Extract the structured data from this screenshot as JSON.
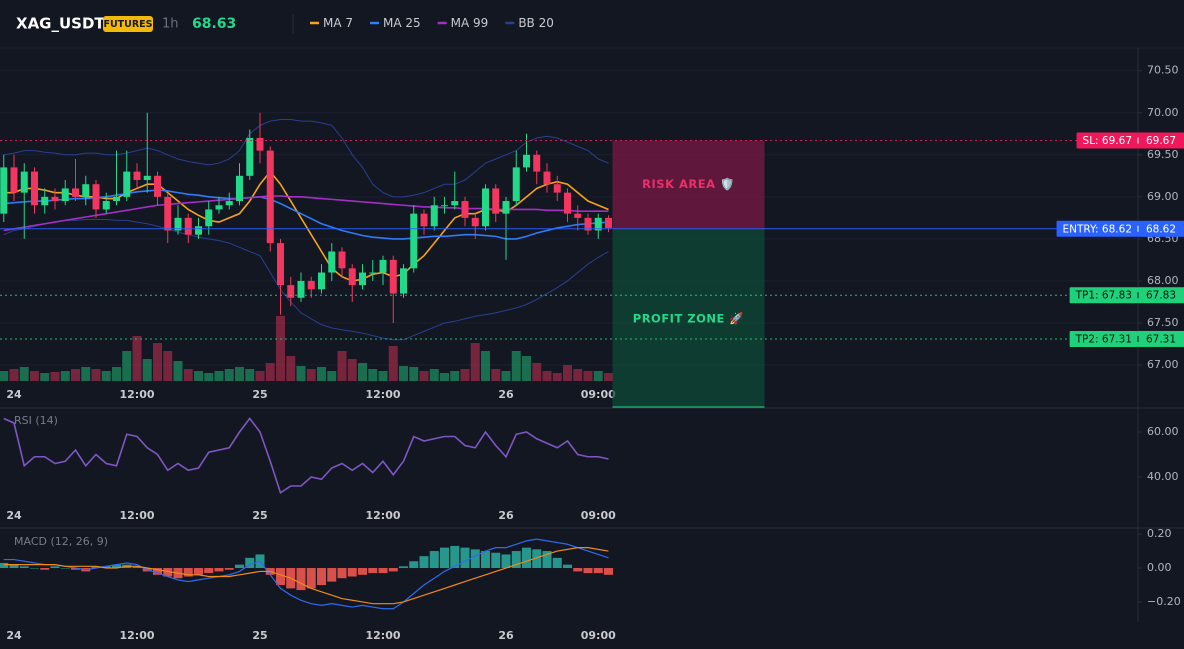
{
  "header": {
    "symbol": "XAG_USDT",
    "badge": "FUTURES",
    "interval": "1h",
    "price": 68.63
  },
  "chart_data": [
    {
      "type": "candlestick",
      "categories": [
        null,
        "24",
        null,
        null,
        null,
        null,
        null,
        null,
        null,
        null,
        null,
        null,
        null,
        "12:00",
        null,
        null,
        null,
        null,
        null,
        null,
        null,
        null,
        null,
        null,
        null,
        "25",
        null,
        null,
        null,
        null,
        null,
        null,
        null,
        null,
        null,
        null,
        null,
        "12:00",
        null,
        null,
        null,
        null,
        null,
        null,
        null,
        null,
        null,
        null,
        null,
        "26",
        null,
        null,
        null,
        null,
        null,
        null,
        null,
        null,
        "09:00",
        null
      ],
      "open": [
        68.8,
        69.35,
        69.05,
        69.3,
        68.9,
        69.0,
        68.95,
        69.1,
        69.0,
        69.15,
        68.85,
        68.95,
        69.0,
        69.3,
        69.2,
        69.25,
        69.0,
        68.6,
        68.75,
        68.55,
        68.65,
        68.85,
        68.9,
        68.95,
        69.25,
        69.7,
        69.55,
        68.45,
        67.95,
        67.8,
        68.0,
        67.9,
        68.1,
        68.35,
        68.15,
        67.95,
        68.1,
        68.1,
        68.25,
        67.85,
        68.15,
        68.8,
        68.65,
        68.9,
        68.9,
        68.95,
        68.75,
        68.65,
        69.1,
        68.8,
        68.95,
        69.35,
        69.5,
        69.3,
        69.15,
        69.05,
        68.8,
        68.75,
        68.6,
        68.75
      ],
      "high": [
        69.5,
        69.5,
        69.4,
        69.35,
        69.1,
        69.1,
        69.2,
        69.45,
        69.25,
        69.2,
        69.05,
        69.55,
        69.55,
        69.4,
        70.0,
        69.3,
        69.05,
        68.9,
        68.8,
        68.75,
        68.95,
        69.0,
        69.05,
        69.4,
        69.8,
        70.0,
        69.6,
        68.5,
        68.05,
        68.1,
        68.05,
        68.2,
        68.45,
        68.4,
        68.2,
        68.2,
        68.25,
        68.3,
        68.3,
        68.2,
        68.9,
        68.85,
        69.0,
        69.0,
        69.3,
        69.0,
        68.8,
        69.15,
        69.15,
        69.0,
        69.55,
        69.75,
        69.55,
        69.4,
        69.25,
        69.1,
        68.9,
        68.8,
        68.8,
        68.78
      ],
      "low": [
        68.7,
        68.95,
        68.5,
        68.8,
        68.8,
        68.85,
        68.9,
        68.95,
        68.9,
        68.75,
        68.8,
        68.9,
        68.95,
        69.1,
        69.05,
        68.9,
        68.45,
        68.55,
        68.45,
        68.5,
        68.55,
        68.8,
        68.85,
        68.9,
        69.2,
        69.4,
        68.35,
        67.6,
        67.7,
        67.75,
        67.8,
        67.85,
        68.0,
        68.05,
        67.75,
        67.9,
        68.0,
        67.95,
        67.5,
        67.8,
        68.1,
        68.55,
        68.6,
        68.8,
        68.85,
        68.65,
        68.5,
        68.6,
        68.7,
        68.25,
        68.9,
        69.3,
        69.15,
        69.05,
        68.95,
        68.7,
        68.6,
        68.55,
        68.5,
        68.58
      ],
      "close": [
        69.35,
        69.05,
        69.3,
        68.9,
        69.0,
        68.95,
        69.1,
        69.0,
        69.15,
        68.85,
        68.95,
        69.0,
        69.3,
        69.2,
        69.25,
        69.0,
        68.6,
        68.75,
        68.55,
        68.65,
        68.85,
        68.9,
        68.95,
        69.25,
        69.7,
        69.55,
        68.45,
        67.95,
        67.8,
        68.0,
        67.9,
        68.1,
        68.35,
        68.15,
        67.95,
        68.1,
        68.1,
        68.25,
        67.85,
        68.15,
        68.8,
        68.65,
        68.9,
        68.9,
        68.95,
        68.75,
        68.65,
        69.1,
        68.8,
        68.95,
        69.35,
        69.5,
        69.3,
        69.15,
        69.05,
        68.8,
        68.75,
        68.6,
        68.75,
        68.63
      ],
      "volume": [
        10,
        12,
        14,
        10,
        8,
        9,
        10,
        12,
        14,
        12,
        10,
        14,
        30,
        45,
        22,
        38,
        30,
        20,
        12,
        10,
        8,
        10,
        12,
        14,
        12,
        10,
        18,
        65,
        25,
        15,
        12,
        14,
        10,
        30,
        22,
        18,
        12,
        10,
        35,
        15,
        14,
        10,
        12,
        8,
        10,
        12,
        38,
        30,
        12,
        10,
        30,
        25,
        18,
        10,
        8,
        16,
        12,
        10,
        10,
        8
      ],
      "up_color": "#22d98a",
      "down_color": "#f2365f",
      "series": [
        {
          "name": "MA 7",
          "color": "#f7a21b",
          "values": [
            69.05,
            69.05,
            69.1,
            69.1,
            69.08,
            69.05,
            69.05,
            69.02,
            69.0,
            69.0,
            68.98,
            68.98,
            69.05,
            69.1,
            69.15,
            69.15,
            69.05,
            68.95,
            68.85,
            68.78,
            68.72,
            68.7,
            68.75,
            68.8,
            68.95,
            69.15,
            69.3,
            69.15,
            68.95,
            68.75,
            68.55,
            68.35,
            68.15,
            68.05,
            68.0,
            68.02,
            68.08,
            68.1,
            68.05,
            68.08,
            68.2,
            68.3,
            68.45,
            68.6,
            68.75,
            68.8,
            68.8,
            68.85,
            68.85,
            68.82,
            68.9,
            69.0,
            69.1,
            69.15,
            69.18,
            69.15,
            69.05,
            68.95,
            68.9,
            68.85
          ]
        },
        {
          "name": "MA 25",
          "color": "#2f7cf6",
          "values": [
            68.92,
            68.93,
            68.94,
            68.95,
            68.95,
            68.96,
            68.97,
            68.98,
            68.98,
            68.99,
            69.0,
            69.02,
            69.04,
            69.06,
            69.07,
            69.08,
            69.07,
            69.05,
            69.03,
            69.02,
            69.0,
            68.99,
            68.98,
            68.98,
            68.99,
            69.0,
            68.97,
            68.92,
            68.86,
            68.8,
            68.74,
            68.68,
            68.64,
            68.6,
            68.57,
            68.54,
            68.52,
            68.51,
            68.5,
            68.5,
            68.51,
            68.52,
            68.53,
            68.53,
            68.54,
            68.55,
            68.55,
            68.54,
            68.53,
            68.5,
            68.5,
            68.53,
            68.57,
            68.6,
            68.63,
            68.65,
            68.67,
            68.68,
            68.69,
            68.7
          ]
        },
        {
          "name": "MA 99",
          "color": "#a52fc4",
          "values": [
            68.6,
            68.62,
            68.64,
            68.66,
            68.68,
            68.7,
            68.72,
            68.74,
            68.76,
            68.78,
            68.8,
            68.82,
            68.84,
            68.86,
            68.88,
            68.9,
            68.91,
            68.92,
            68.93,
            68.94,
            68.95,
            68.96,
            68.97,
            68.98,
            68.99,
            69.0,
            69.01,
            69.01,
            69.0,
            69.0,
            68.99,
            68.98,
            68.97,
            68.96,
            68.95,
            68.94,
            68.93,
            68.92,
            68.91,
            68.9,
            68.89,
            68.88,
            68.88,
            68.87,
            68.87,
            68.86,
            68.86,
            68.86,
            68.85,
            68.85,
            68.85,
            68.85,
            68.85,
            68.84,
            68.84,
            68.84,
            68.83,
            68.83,
            68.83,
            68.83
          ]
        }
      ],
      "bands": [
        {
          "name": "BB 20",
          "color": "#2a3f8f",
          "upper": [
            69.5,
            69.52,
            69.55,
            69.55,
            69.53,
            69.52,
            69.5,
            69.5,
            69.52,
            69.52,
            69.5,
            69.5,
            69.52,
            69.55,
            69.58,
            69.55,
            69.5,
            69.45,
            69.42,
            69.4,
            69.38,
            69.4,
            69.45,
            69.55,
            69.75,
            69.85,
            69.9,
            69.92,
            69.92,
            69.9,
            69.9,
            69.88,
            69.85,
            69.7,
            69.5,
            69.35,
            69.15,
            69.05,
            69.0,
            69.0,
            69.02,
            69.05,
            69.1,
            69.15,
            69.15,
            69.2,
            69.3,
            69.4,
            69.45,
            69.5,
            69.55,
            69.65,
            69.7,
            69.72,
            69.7,
            69.65,
            69.6,
            69.55,
            69.45,
            69.4
          ],
          "lower": [
            68.55,
            68.6,
            68.62,
            68.65,
            68.68,
            68.7,
            68.72,
            68.72,
            68.73,
            68.73,
            68.73,
            68.72,
            68.72,
            68.7,
            68.68,
            68.65,
            68.62,
            68.58,
            68.55,
            68.52,
            68.5,
            68.48,
            68.45,
            68.4,
            68.35,
            68.3,
            68.1,
            67.9,
            67.75,
            67.62,
            67.55,
            67.48,
            67.44,
            67.42,
            67.4,
            67.38,
            67.35,
            67.32,
            67.3,
            67.3,
            67.35,
            67.4,
            67.45,
            67.5,
            67.52,
            67.55,
            67.58,
            67.6,
            67.62,
            67.65,
            67.68,
            67.72,
            67.78,
            67.85,
            67.92,
            68.0,
            68.1,
            68.2,
            68.28,
            68.35
          ]
        }
      ],
      "ylim": [
        66.81,
        70.77
      ],
      "yticks": [
        {
          "value": 70.5,
          "label": "70.50"
        },
        {
          "value": 70,
          "label": "70.00"
        },
        {
          "value": 69.5,
          "label": "69.50"
        },
        {
          "value": 69,
          "label": "69.00"
        },
        {
          "value": 68.5,
          "label": "68.50"
        },
        {
          "value": 68,
          "label": "68.00"
        },
        {
          "value": 67.5,
          "label": "67.50"
        },
        {
          "value": 67,
          "label": "67.00"
        }
      ],
      "grid": true,
      "levels": [
        {
          "label": "SL: 69.67",
          "value": 69.67,
          "color": "#f0185a",
          "text_color": "#ffffff",
          "style": "dotted"
        },
        {
          "label": "ENTRY: 68.62",
          "value": 68.62,
          "color": "#2962ff",
          "text_color": "#ffffff",
          "style": "solid"
        },
        {
          "label": "TP1: 67.83",
          "value": 67.83,
          "color": "#1fd17a",
          "text_color": "#07150e",
          "style": "dotted"
        },
        {
          "label": "TP2: 67.31",
          "value": 67.31,
          "color": "#1fd17a",
          "text_color": "#07150e",
          "style": "dotted"
        }
      ],
      "zones": [
        {
          "label": "RISK AREA 🛡️",
          "color": "#7a1a45",
          "text_color": "#ec2f6b"
        },
        {
          "label": "PROFIT ZONE 🚀",
          "color": "#0f4a36",
          "text_color": "#22d98a"
        }
      ]
    },
    {
      "type": "line",
      "title": "RSI (14)",
      "categories": [
        null,
        "24",
        null,
        null,
        null,
        null,
        null,
        null,
        null,
        null,
        null,
        null,
        null,
        "12:00",
        null,
        null,
        null,
        null,
        null,
        null,
        null,
        null,
        null,
        null,
        null,
        "25",
        null,
        null,
        null,
        null,
        null,
        null,
        null,
        null,
        null,
        null,
        null,
        "12:00",
        null,
        null,
        null,
        null,
        null,
        null,
        null,
        null,
        null,
        null,
        null,
        "26",
        null,
        null,
        null,
        null,
        null,
        null,
        null,
        null,
        "09:00",
        null
      ],
      "color": "#7e57c2",
      "values": [
        66,
        64,
        45,
        49,
        49,
        46,
        47,
        52,
        45,
        50,
        46,
        45,
        59,
        58,
        53,
        50,
        43,
        46,
        43,
        44,
        51,
        52,
        53,
        60,
        66,
        60,
        47,
        33,
        36,
        36,
        40,
        39,
        44,
        46,
        43,
        46,
        42,
        47,
        41,
        47,
        58,
        56,
        57,
        58,
        58,
        54,
        53,
        60,
        54,
        49,
        59,
        60,
        57,
        55,
        53,
        56,
        50,
        49,
        49,
        48
      ],
      "ylim": [
        27.56,
        69.78
      ],
      "yticks": [
        {
          "value": 60,
          "label": "60.00"
        },
        {
          "value": 40,
          "label": "40.00"
        }
      ]
    },
    {
      "type": "macd",
      "title": "MACD (12, 26, 9)",
      "categories": [
        null,
        "24",
        null,
        null,
        null,
        null,
        null,
        null,
        null,
        null,
        null,
        null,
        null,
        "12:00",
        null,
        null,
        null,
        null,
        null,
        null,
        null,
        null,
        null,
        null,
        null,
        "25",
        null,
        null,
        null,
        null,
        null,
        null,
        null,
        null,
        null,
        null,
        null,
        "12:00",
        null,
        null,
        null,
        null,
        null,
        null,
        null,
        null,
        null,
        null,
        null,
        "26",
        null,
        null,
        null,
        null,
        null,
        null,
        null,
        null,
        "09:00",
        null
      ],
      "values": [
        0.03,
        0.02,
        0.01,
        0.0,
        -0.01,
        0.01,
        0.0,
        -0.01,
        -0.02,
        0.01,
        0.01,
        0.02,
        0.02,
        0.01,
        -0.02,
        -0.04,
        -0.05,
        -0.06,
        -0.05,
        -0.04,
        -0.03,
        -0.02,
        -0.01,
        0.02,
        0.06,
        0.08,
        -0.04,
        -0.1,
        -0.12,
        -0.13,
        -0.12,
        -0.1,
        -0.08,
        -0.06,
        -0.05,
        -0.04,
        -0.03,
        -0.03,
        -0.02,
        0.01,
        0.04,
        0.07,
        0.1,
        0.12,
        0.13,
        0.12,
        0.11,
        0.1,
        0.09,
        0.08,
        0.1,
        0.12,
        0.11,
        0.1,
        0.06,
        0.02,
        -0.02,
        -0.03,
        -0.03,
        -0.04
      ],
      "up_color": "#2aa59a",
      "down_color": "#f0564f",
      "series": [
        {
          "color": "#2f6bf0",
          "values": [
            0.05,
            0.05,
            0.04,
            0.03,
            0.02,
            0.02,
            0.01,
            0.0,
            -0.01,
            0.0,
            0.01,
            0.02,
            0.03,
            0.02,
            -0.01,
            -0.03,
            -0.05,
            -0.07,
            -0.08,
            -0.07,
            -0.06,
            -0.05,
            -0.04,
            -0.02,
            0.02,
            0.04,
            -0.04,
            -0.12,
            -0.16,
            -0.19,
            -0.21,
            -0.22,
            -0.21,
            -0.22,
            -0.23,
            -0.22,
            -0.23,
            -0.24,
            -0.24,
            -0.2,
            -0.15,
            -0.1,
            -0.06,
            -0.02,
            0.01,
            0.04,
            0.07,
            0.1,
            0.12,
            0.12,
            0.14,
            0.16,
            0.17,
            0.16,
            0.15,
            0.14,
            0.12,
            0.1,
            0.08,
            0.06
          ]
        },
        {
          "color": "#f08a1c",
          "values": [
            0.02,
            0.02,
            0.02,
            0.02,
            0.02,
            0.02,
            0.01,
            0.01,
            0.01,
            0.01,
            0.0,
            0.0,
            0.01,
            0.01,
            0.0,
            -0.01,
            -0.02,
            -0.03,
            -0.04,
            -0.04,
            -0.05,
            -0.05,
            -0.05,
            -0.04,
            -0.03,
            -0.02,
            -0.02,
            -0.04,
            -0.06,
            -0.09,
            -0.12,
            -0.14,
            -0.16,
            -0.18,
            -0.19,
            -0.2,
            -0.21,
            -0.21,
            -0.21,
            -0.2,
            -0.18,
            -0.16,
            -0.14,
            -0.12,
            -0.1,
            -0.08,
            -0.06,
            -0.04,
            -0.02,
            0.0,
            0.02,
            0.04,
            0.06,
            0.08,
            0.1,
            0.11,
            0.12,
            0.12,
            0.11,
            0.1
          ]
        }
      ],
      "ylim": [
        -0.318,
        0.224
      ],
      "yticks": [
        {
          "value": 0.2,
          "label": "0.20"
        },
        {
          "value": 0,
          "label": "0.00"
        },
        {
          "value": -0.2,
          "label": "−0.20"
        }
      ]
    }
  ]
}
